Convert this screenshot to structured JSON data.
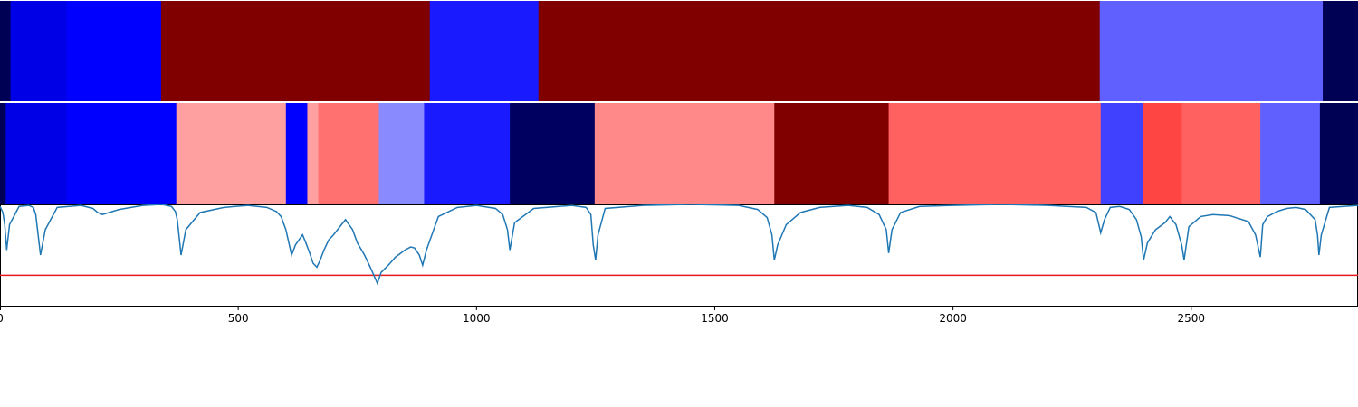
{
  "chart_data": {
    "type": "segmentation-timeline",
    "xlim": [
      0,
      2850
    ],
    "x_ticks": [
      {
        "value": 0,
        "label": "0"
      },
      {
        "value": 500,
        "label": "500"
      },
      {
        "value": 1000,
        "label": "1000"
      },
      {
        "value": 1500,
        "label": "1500"
      },
      {
        "value": 2000,
        "label": "2000"
      },
      {
        "value": 2500,
        "label": "2500"
      }
    ],
    "colors": {
      "curve": "#1f77b4",
      "threshold": "#e41a1c",
      "axis": "#000000"
    },
    "segment_rows": [
      {
        "segments": [
          {
            "start": 0,
            "end": 22,
            "color": "#000055"
          },
          {
            "start": 22,
            "end": 140,
            "color": "#0000e6"
          },
          {
            "start": 140,
            "end": 338,
            "color": "#0000ff"
          },
          {
            "start": 338,
            "end": 902,
            "color": "#800000"
          },
          {
            "start": 902,
            "end": 1130,
            "color": "#1a1aff"
          },
          {
            "start": 1130,
            "end": 2308,
            "color": "#800000"
          },
          {
            "start": 2308,
            "end": 2776,
            "color": "#6060ff"
          },
          {
            "start": 2776,
            "end": 2850,
            "color": "#000055"
          }
        ]
      },
      {
        "segments": [
          {
            "start": 0,
            "end": 12,
            "color": "#000055"
          },
          {
            "start": 12,
            "end": 140,
            "color": "#0000e6"
          },
          {
            "start": 140,
            "end": 370,
            "color": "#0000ff"
          },
          {
            "start": 370,
            "end": 600,
            "color": "#ffa0a0"
          },
          {
            "start": 600,
            "end": 645,
            "color": "#0000ff"
          },
          {
            "start": 645,
            "end": 668,
            "color": "#ffa0a0"
          },
          {
            "start": 668,
            "end": 795,
            "color": "#ff7070"
          },
          {
            "start": 795,
            "end": 890,
            "color": "#8a8aff"
          },
          {
            "start": 890,
            "end": 1070,
            "color": "#1a1aff"
          },
          {
            "start": 1070,
            "end": 1248,
            "color": "#000060"
          },
          {
            "start": 1248,
            "end": 1625,
            "color": "#ff8888"
          },
          {
            "start": 1625,
            "end": 1865,
            "color": "#800000"
          },
          {
            "start": 1865,
            "end": 2310,
            "color": "#ff6060"
          },
          {
            "start": 2310,
            "end": 2398,
            "color": "#4040ff"
          },
          {
            "start": 2398,
            "end": 2480,
            "color": "#ff4444"
          },
          {
            "start": 2480,
            "end": 2645,
            "color": "#ff6060"
          },
          {
            "start": 2645,
            "end": 2770,
            "color": "#6060ff"
          },
          {
            "start": 2770,
            "end": 2850,
            "color": "#000055"
          }
        ]
      }
    ],
    "curve_ylim": [
      0,
      1
    ],
    "threshold": 0.3,
    "curve": {
      "x": [
        0,
        6,
        10,
        14,
        20,
        40,
        60,
        70,
        75,
        80,
        85,
        95,
        120,
        170,
        195,
        205,
        215,
        250,
        300,
        340,
        360,
        368,
        372,
        380,
        390,
        420,
        470,
        520,
        560,
        580,
        590,
        600,
        612,
        620,
        635,
        642,
        650,
        657,
        665,
        672,
        680,
        690,
        700,
        710,
        725,
        740,
        750,
        765,
        780,
        792,
        800,
        815,
        830,
        850,
        862,
        870,
        880,
        887,
        895,
        920,
        960,
        1000,
        1040,
        1055,
        1065,
        1070,
        1080,
        1120,
        1200,
        1230,
        1240,
        1245,
        1250,
        1255,
        1270,
        1350,
        1450,
        1550,
        1590,
        1610,
        1620,
        1625,
        1632,
        1650,
        1680,
        1720,
        1780,
        1820,
        1845,
        1860,
        1865,
        1872,
        1890,
        1930,
        2000,
        2100,
        2200,
        2280,
        2300,
        2310,
        2318,
        2330,
        2350,
        2370,
        2385,
        2395,
        2400,
        2408,
        2425,
        2445,
        2455,
        2468,
        2480,
        2485,
        2495,
        2520,
        2545,
        2580,
        2620,
        2635,
        2645,
        2650,
        2660,
        2680,
        2700,
        2720,
        2740,
        2760,
        2765,
        2768,
        2773,
        2790,
        2850
      ],
      "y": [
        0.98,
        0.92,
        0.8,
        0.55,
        0.8,
        0.98,
        0.99,
        0.97,
        0.9,
        0.7,
        0.5,
        0.75,
        0.97,
        0.99,
        0.96,
        0.92,
        0.9,
        0.95,
        0.99,
        1.0,
        0.98,
        0.93,
        0.85,
        0.5,
        0.75,
        0.92,
        0.97,
        0.99,
        0.97,
        0.93,
        0.88,
        0.75,
        0.5,
        0.6,
        0.7,
        0.62,
        0.52,
        0.42,
        0.38,
        0.45,
        0.55,
        0.65,
        0.7,
        0.76,
        0.85,
        0.75,
        0.62,
        0.5,
        0.35,
        0.22,
        0.33,
        0.4,
        0.48,
        0.55,
        0.58,
        0.57,
        0.5,
        0.4,
        0.55,
        0.88,
        0.97,
        0.99,
        0.96,
        0.9,
        0.75,
        0.55,
        0.82,
        0.96,
        0.99,
        0.97,
        0.9,
        0.6,
        0.45,
        0.7,
        0.96,
        0.99,
        1.0,
        0.99,
        0.95,
        0.87,
        0.7,
        0.45,
        0.6,
        0.8,
        0.92,
        0.97,
        0.99,
        0.97,
        0.9,
        0.75,
        0.52,
        0.75,
        0.92,
        0.98,
        0.99,
        1.0,
        0.99,
        0.97,
        0.92,
        0.72,
        0.85,
        0.97,
        0.98,
        0.95,
        0.85,
        0.68,
        0.45,
        0.62,
        0.75,
        0.82,
        0.88,
        0.8,
        0.6,
        0.45,
        0.78,
        0.88,
        0.9,
        0.89,
        0.83,
        0.7,
        0.48,
        0.8,
        0.88,
        0.93,
        0.96,
        0.97,
        0.95,
        0.85,
        0.7,
        0.5,
        0.7,
        0.97,
        0.99
      ]
    }
  }
}
